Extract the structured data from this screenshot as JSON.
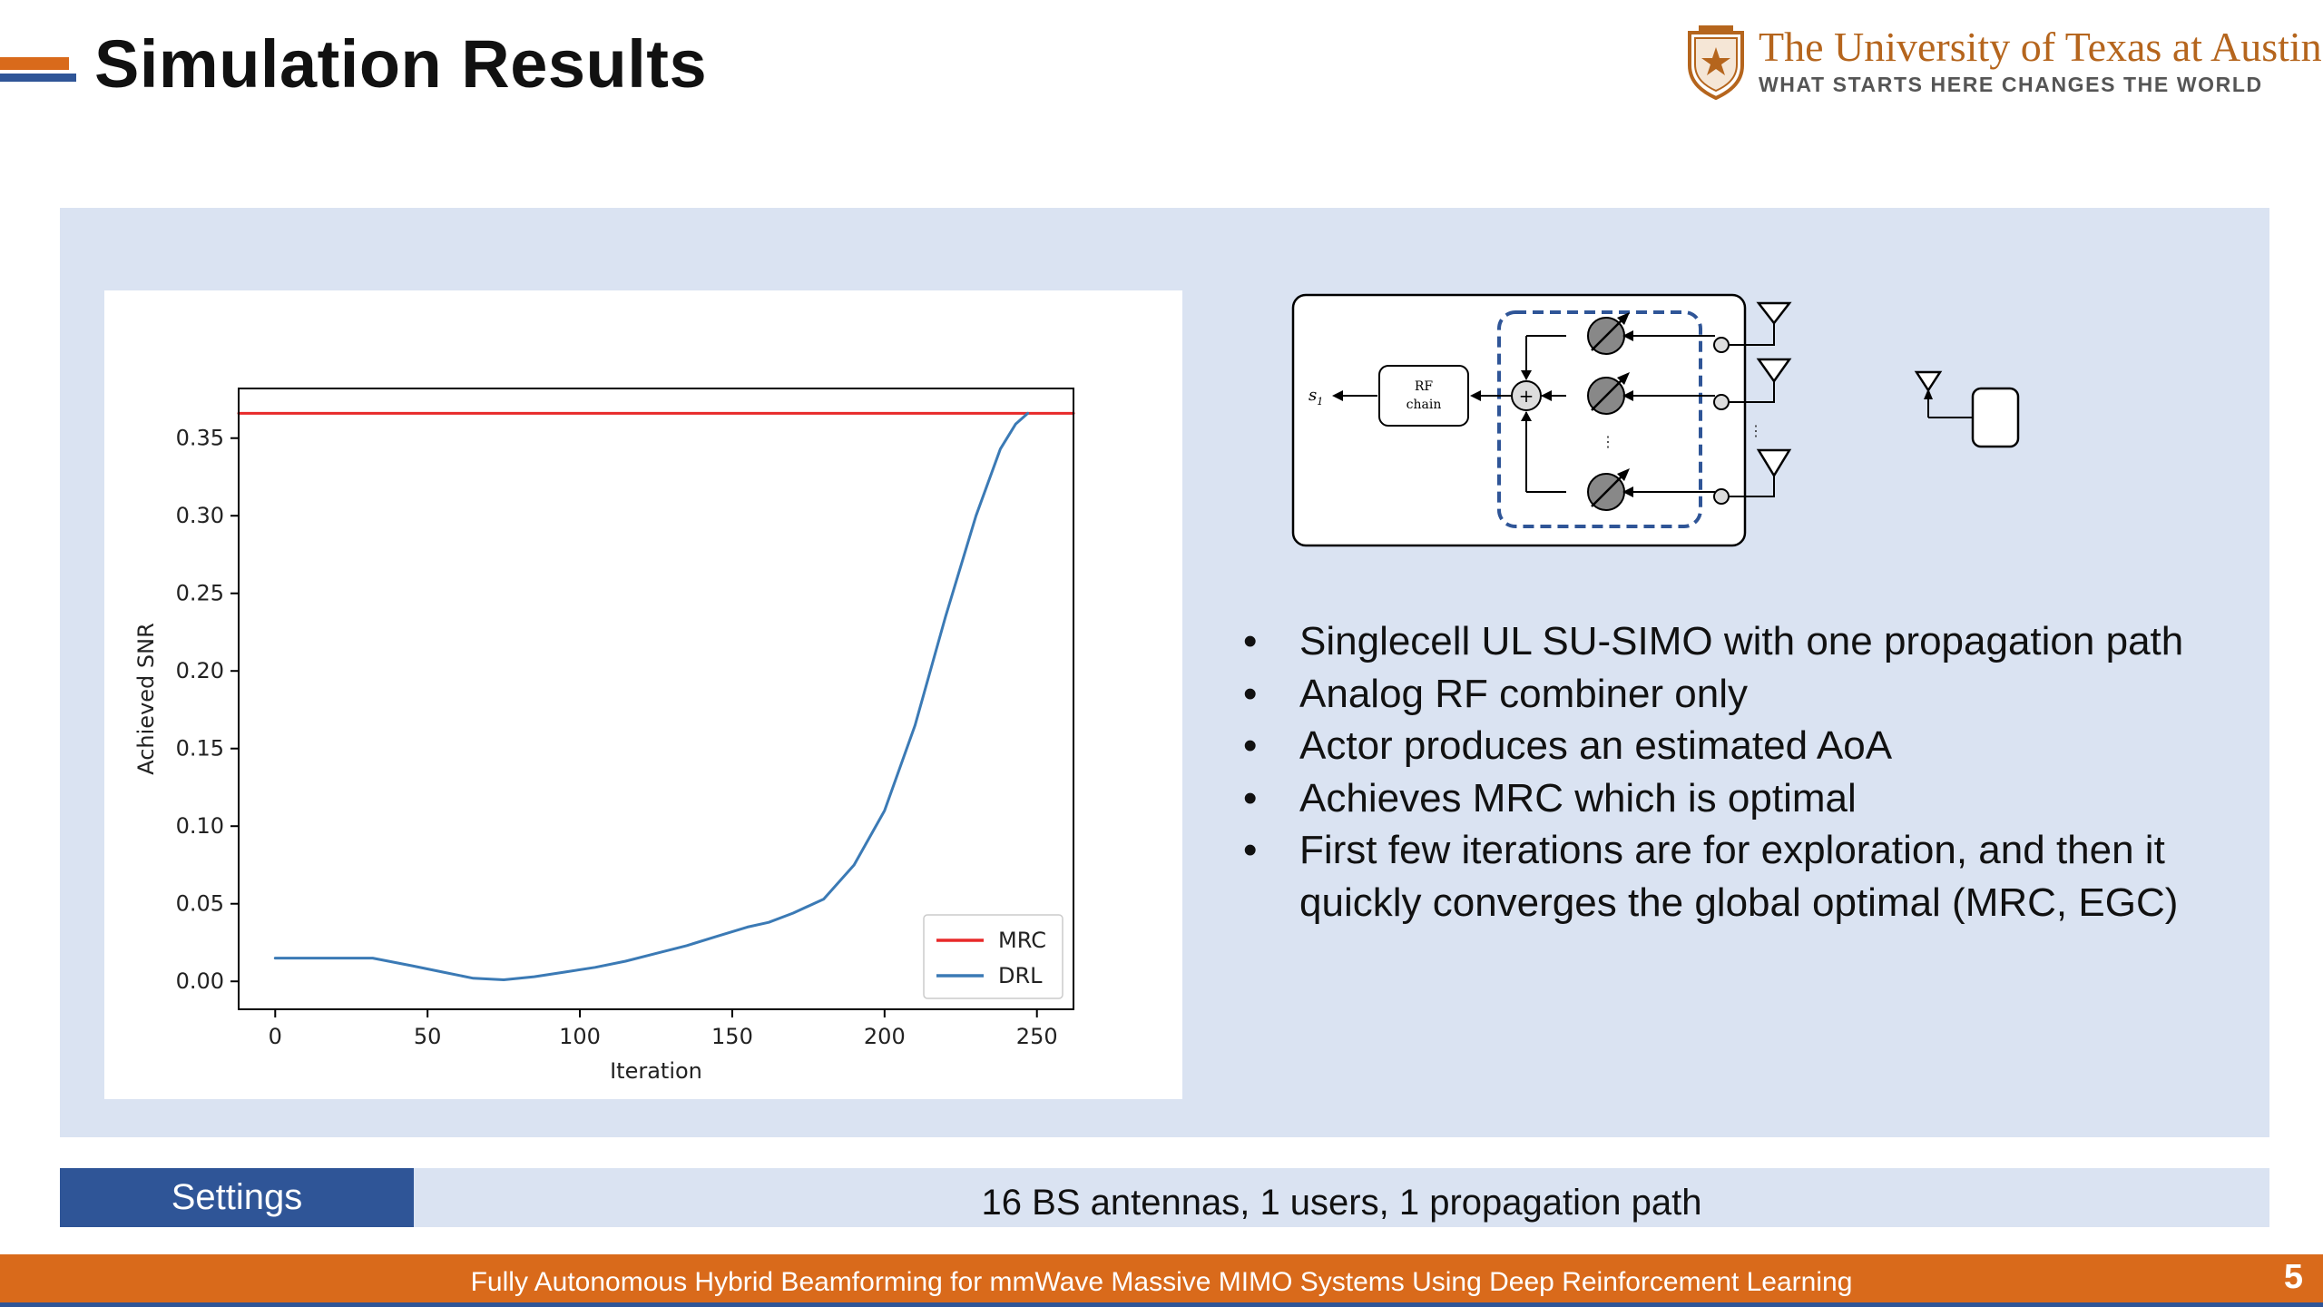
{
  "slide": {
    "title": "Simulation Results",
    "page_number": "5"
  },
  "logo": {
    "name": "The University of Texas at Austin",
    "tagline": "WHAT STARTS HERE CHANGES THE WORLD"
  },
  "colors": {
    "accent_orange": "#d96a1b",
    "accent_blue": "#2f5597",
    "panel_bg": "#dae3f2",
    "mrc_line": "#e82a2a",
    "drl_line": "#3b7ab5"
  },
  "diagram": {
    "rf_chain_line1": "RF",
    "rf_chain_line2": "chain",
    "signal_label": "s",
    "signal_subscript": "1"
  },
  "bullets": [
    {
      "text": "Singlecell UL SU-SIMO with one propagation path"
    },
    {
      "text": "Analog RF combiner only"
    },
    {
      "text": "Actor produces an estimated AoA"
    },
    {
      "text": "Achieves MRC which is optimal"
    },
    {
      "text": "First few iterations are for exploration, and then it quickly converges the global optimal (MRC, EGC)"
    }
  ],
  "bullet_symbol": "•",
  "settings": {
    "label": "Settings",
    "value": "16 BS antennas, 1 users, 1 propagation path"
  },
  "footer": {
    "title": "Fully Autonomous Hybrid Beamforming for mmWave Massive MIMO Systems Using Deep Reinforcement Learning"
  },
  "chart_data": {
    "type": "line",
    "title": "",
    "xlabel": "Iteration",
    "ylabel": "Achieved SNR",
    "xlim": [
      -12,
      262
    ],
    "ylim": [
      -0.018,
      0.382
    ],
    "xticks": [
      0,
      50,
      100,
      150,
      200,
      250
    ],
    "yticks": [
      0.0,
      0.05,
      0.1,
      0.15,
      0.2,
      0.25,
      0.3,
      0.35
    ],
    "ytick_labels": [
      "0.00",
      "0.05",
      "0.10",
      "0.15",
      "0.20",
      "0.25",
      "0.30",
      "0.35"
    ],
    "grid": false,
    "legend": "lower-right",
    "series": [
      {
        "name": "MRC",
        "color": "#e82a2a",
        "x": [
          -12,
          262
        ],
        "y": [
          0.366,
          0.366
        ]
      },
      {
        "name": "DRL",
        "color": "#3b7ab5",
        "x": [
          0,
          10,
          20,
          32,
          45,
          55,
          65,
          75,
          85,
          95,
          105,
          115,
          125,
          135,
          145,
          155,
          162,
          170,
          180,
          190,
          200,
          210,
          220,
          230,
          238,
          243,
          247
        ],
        "y": [
          0.015,
          0.015,
          0.015,
          0.015,
          0.01,
          0.006,
          0.002,
          0.001,
          0.003,
          0.006,
          0.009,
          0.013,
          0.018,
          0.023,
          0.029,
          0.035,
          0.038,
          0.044,
          0.053,
          0.075,
          0.11,
          0.165,
          0.235,
          0.3,
          0.343,
          0.359,
          0.366
        ]
      }
    ]
  }
}
